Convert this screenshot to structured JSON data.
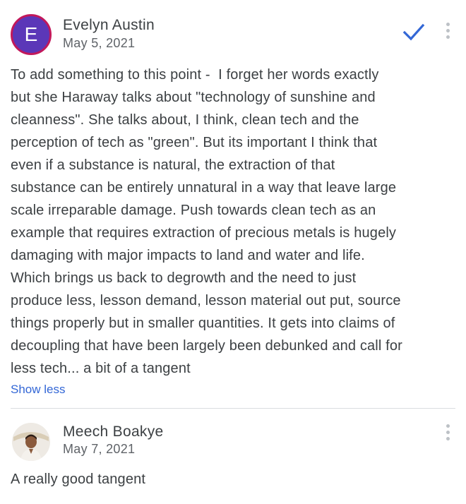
{
  "comments": [
    {
      "author": "Evelyn Austin",
      "avatar_letter": "E",
      "date": "May 5, 2021",
      "body": "To add something to this point -  I forget her words exactly\nbut she Haraway talks about \"technology of sunshine and\ncleanness\". She talks about, I think, clean tech and the\nperception of tech as \"green\". But its important I think that\neven if a substance is natural, the extraction of that\nsubstance can be entirely unnatural in a way that leave large\nscale irreparable damage. Push towards clean tech as an\nexample that requires extraction of precious metals is hugely\ndamaging with major impacts to land and water and life.\nWhich brings us back to degrowth and the need to just\nproduce less, lesson demand, lesson material out put, source\nthings properly but in smaller quantities. It gets into claims of\ndecoupling that have been largely been debunked and call for\nless tech... a bit of a tangent",
      "show_less_label": "Show less",
      "resolved_icon": "check-icon",
      "menu_icon": "more-vert-icon"
    },
    {
      "author": "Meech Boakye",
      "date": "May 7, 2021",
      "body": "A really good tangent",
      "menu_icon": "more-vert-icon"
    }
  ],
  "colors": {
    "accent": "#3367d6",
    "avatar_bg": "#5b37b8",
    "avatar_ring": "#c2185b",
    "text": "#3c4043",
    "muted": "#5f6368",
    "divider": "#dadce0"
  }
}
